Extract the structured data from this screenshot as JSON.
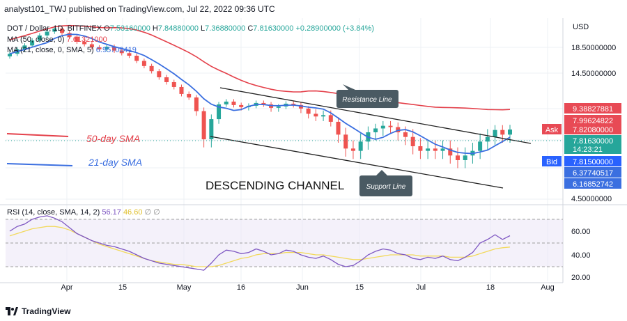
{
  "header": {
    "published": "analyst101_TWJ published on TradingView.com, Jul 22, 2022 09:36 UTC"
  },
  "footer": {
    "brand": "TradingView"
  },
  "colors": {
    "up": "#26a69a",
    "down": "#ef5350",
    "sma50": "#e4414b",
    "sma21": "#3b6fe0",
    "rsi": "#7e57c2",
    "rsi_ma": "#f2d95c",
    "channel": "#222222",
    "callout": "#4a5a63"
  },
  "chart_data": [
    {
      "type": "candlestick",
      "title": "DOT / Dollar, 1D, BITFINEX",
      "ohlc_readout": {
        "o_label": "O",
        "o": "7.53160000",
        "h_label": "H",
        "h": "7.84880000",
        "l_label": "L",
        "l": "7.36880000",
        "c_label": "C",
        "c": "7.81630000",
        "change": "+0.28900000 (+3.84%)"
      },
      "indicators": [
        {
          "label": "MA (50, close, 0)",
          "value": "7.61321000"
        },
        {
          "label": "MA (21, close, 0, SMA, 5)",
          "value": "6.95700419"
        }
      ],
      "currency": "USD",
      "y_ticks": [
        "18.50000000",
        "14.50000000",
        "4.50000000"
      ],
      "x_ticks": [
        "Apr",
        "15",
        "May",
        "16",
        "Jun",
        "15",
        "Jul",
        "18",
        "Aug"
      ],
      "price_tags": [
        {
          "text": "9.38827881",
          "bg": "#e84a55",
          "fg": "#ffffff",
          "price": 9.388
        },
        {
          "text": "7.99624822",
          "bg": "#e84a55",
          "fg": "#ffffff",
          "price": 7.996
        },
        {
          "text": "Ask",
          "bg": "#e84a55",
          "fg": "#ffffff",
          "price": 7.821,
          "side": "left"
        },
        {
          "text": "7.82080000",
          "bg": "#e84a55",
          "fg": "#ffffff",
          "price": 7.821
        },
        {
          "text": "7.81630000",
          "bg": "#26a69a",
          "fg": "#ffffff",
          "price": 7.816
        },
        {
          "text": "14:23:21",
          "bg": "#26a69a",
          "fg": "#ffffff",
          "price": 7.816,
          "sub": true
        },
        {
          "text": "Bid",
          "bg": "#2962ff",
          "fg": "#ffffff",
          "price": 7.815,
          "side": "left"
        },
        {
          "text": "7.81500000",
          "bg": "#2962ff",
          "fg": "#ffffff",
          "price": 7.815,
          "sub2": true
        },
        {
          "text": "6.37740517",
          "bg": "#3b6fe0",
          "fg": "#ffffff",
          "price": 6.377
        },
        {
          "text": "6.16852742",
          "bg": "#3b6fe0",
          "fg": "#ffffff",
          "price": 6.169
        }
      ],
      "annotations": {
        "sma50": "50-day SMA",
        "sma21": "21-day SMA",
        "channel": "DESCENDING CHANNEL",
        "resistance": "Resistance Line",
        "support": "Support Line"
      },
      "price_close_series": [
        17.5,
        18.2,
        18.8,
        19.6,
        20.4,
        21.0,
        21.5,
        20.8,
        20.2,
        19.4,
        19.0,
        18.5,
        18.2,
        18.6,
        18.0,
        17.6,
        17.2,
        16.4,
        15.6,
        14.8,
        13.9,
        13.2,
        12.5,
        11.5,
        11.0,
        9.2,
        7.4,
        8.6,
        10.0,
        10.4,
        9.9,
        9.6,
        9.8,
        10.2,
        10.0,
        9.5,
        9.7,
        10.1,
        9.9,
        9.4,
        9.0,
        8.8,
        8.9,
        8.4,
        7.6,
        7.0,
        6.9,
        7.3,
        7.7,
        7.9,
        8.1,
        8.0,
        7.7,
        7.5,
        7.1,
        6.9,
        7.0,
        6.9,
        7.0,
        6.7,
        6.5,
        6.7,
        6.9,
        7.3,
        7.5,
        7.8,
        7.6,
        7.82
      ],
      "rsi": {
        "label": "RSI (14, close, SMA, 14, 2)",
        "values": [
          {
            "text": "56.17",
            "color": "#7e57c2"
          },
          {
            "text": "46.60",
            "color": "#e0c030"
          }
        ],
        "y_ticks": [
          "60.00",
          "40.00",
          "20.00"
        ],
        "levels": [
          70,
          50,
          30
        ],
        "range": [
          20,
          80
        ],
        "series": [
          60,
          64,
          66,
          70,
          72,
          73,
          71,
          68,
          63,
          58,
          55,
          52,
          50,
          48,
          47,
          45,
          43,
          40,
          37,
          35,
          33,
          32,
          31,
          30,
          29,
          28,
          27,
          33,
          40,
          44,
          43,
          41,
          42,
          45,
          43,
          40,
          41,
          44,
          43,
          40,
          38,
          37,
          39,
          36,
          32,
          30,
          31,
          35,
          40,
          43,
          45,
          44,
          41,
          40,
          37,
          36,
          38,
          37,
          39,
          36,
          35,
          38,
          42,
          50,
          53,
          57,
          53,
          56.17
        ],
        "ma_series": [
          56,
          58,
          60,
          62,
          63,
          64,
          64,
          63,
          61,
          58,
          55,
          52,
          49,
          47,
          45,
          43,
          41,
          39,
          37,
          35,
          34,
          33,
          32,
          32,
          31,
          30,
          30,
          30,
          31,
          33,
          35,
          37,
          38,
          40,
          41,
          41,
          41,
          42,
          42,
          42,
          41,
          40,
          40,
          39,
          38,
          37,
          36,
          36,
          37,
          38,
          39,
          40,
          40,
          40,
          40,
          39,
          39,
          39,
          39,
          38,
          38,
          38,
          39,
          41,
          43,
          45,
          46,
          46.6
        ]
      }
    }
  ]
}
